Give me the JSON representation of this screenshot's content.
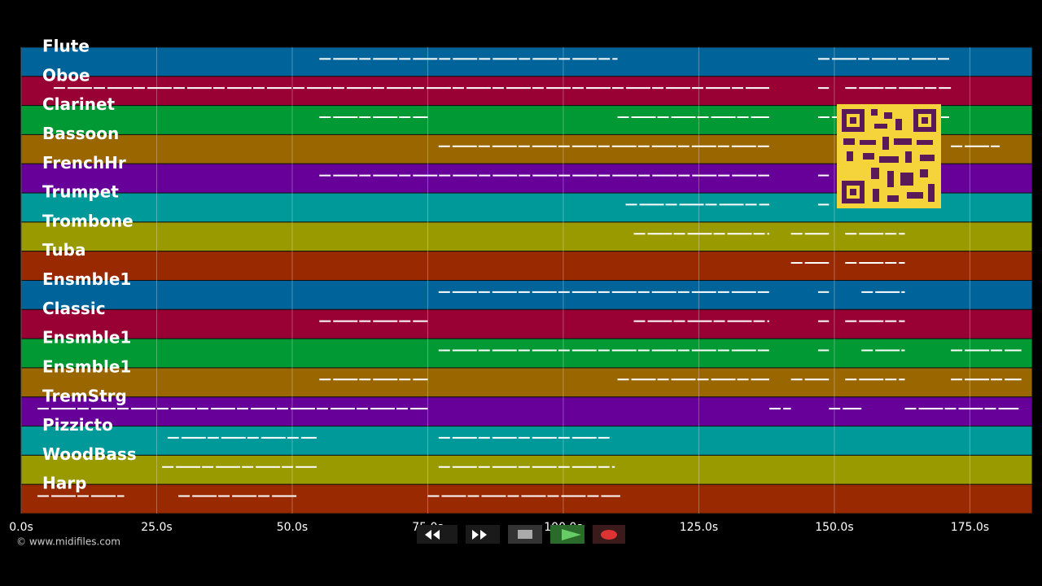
{
  "tracks": [
    {
      "name": "Flute",
      "color": "#00649a",
      "notes": [
        [
          55,
          110
        ],
        [
          147,
          171.5
        ]
      ]
    },
    {
      "name": "Oboe",
      "color": "#990033",
      "notes": [
        [
          6,
          138
        ],
        [
          147,
          149
        ],
        [
          152,
          171.5
        ]
      ]
    },
    {
      "name": "Clarinet",
      "color": "#009933",
      "notes": [
        [
          55,
          75
        ],
        [
          110,
          138
        ],
        [
          147,
          171.5
        ]
      ]
    },
    {
      "name": "Bassoon",
      "color": "#996600",
      "notes": [
        [
          77,
          138
        ],
        [
          171.5,
          180.5
        ]
      ]
    },
    {
      "name": "FrenchHr",
      "color": "#660099",
      "notes": [
        [
          55,
          138
        ],
        [
          147,
          149
        ]
      ]
    },
    {
      "name": "Trumpet",
      "color": "#009999",
      "notes": [
        [
          111.5,
          138
        ],
        [
          147,
          149
        ]
      ]
    },
    {
      "name": "Trombone",
      "color": "#999900",
      "notes": [
        [
          113,
          138
        ],
        [
          142,
          149
        ],
        [
          152,
          163
        ]
      ]
    },
    {
      "name": "Tuba",
      "color": "#992900",
      "notes": [
        [
          142,
          149
        ],
        [
          152,
          163
        ]
      ]
    },
    {
      "name": "Ensmble1",
      "color": "#00649a",
      "notes": [
        [
          77,
          138
        ],
        [
          147,
          149
        ],
        [
          155,
          163
        ]
      ]
    },
    {
      "name": "Classic",
      "color": "#990033",
      "notes": [
        [
          55,
          75
        ],
        [
          113,
          138
        ],
        [
          147,
          149
        ],
        [
          152,
          163
        ]
      ]
    },
    {
      "name": "Ensmble1",
      "color": "#009933",
      "notes": [
        [
          77,
          138
        ],
        [
          147,
          149
        ],
        [
          155,
          163
        ],
        [
          171.5,
          184.5
        ]
      ]
    },
    {
      "name": "Ensmble1",
      "color": "#996600",
      "notes": [
        [
          55,
          75
        ],
        [
          110,
          138
        ],
        [
          142,
          149
        ],
        [
          152,
          163
        ],
        [
          171.5,
          184.5
        ]
      ]
    },
    {
      "name": "TremStrg",
      "color": "#660099",
      "notes": [
        [
          3,
          75
        ],
        [
          138,
          142
        ],
        [
          149,
          155
        ],
        [
          163,
          184
        ]
      ]
    },
    {
      "name": "Pizzicto",
      "color": "#009999",
      "notes": [
        [
          27,
          54.5
        ],
        [
          77,
          109
        ]
      ]
    },
    {
      "name": "WoodBass",
      "color": "#999900",
      "notes": [
        [
          26,
          54.5
        ],
        [
          77,
          109.5
        ]
      ]
    },
    {
      "name": "Harp",
      "color": "#992900",
      "notes": [
        [
          3,
          19
        ],
        [
          29,
          51
        ],
        [
          75,
          110.5
        ]
      ]
    }
  ],
  "axis": {
    "xlim": [
      0,
      186.5
    ],
    "xticks": [
      {
        "value": 0,
        "label": "0.0s"
      },
      {
        "value": 25,
        "label": "25.0s"
      },
      {
        "value": 50,
        "label": "50.0s"
      },
      {
        "value": 75,
        "label": "75.0s"
      },
      {
        "value": 100,
        "label": "100.0s"
      },
      {
        "value": 125,
        "label": "125.0s"
      },
      {
        "value": 150,
        "label": "150.0s"
      },
      {
        "value": 175,
        "label": "175.0s"
      }
    ]
  },
  "footer": "© www.midifiles.com"
}
